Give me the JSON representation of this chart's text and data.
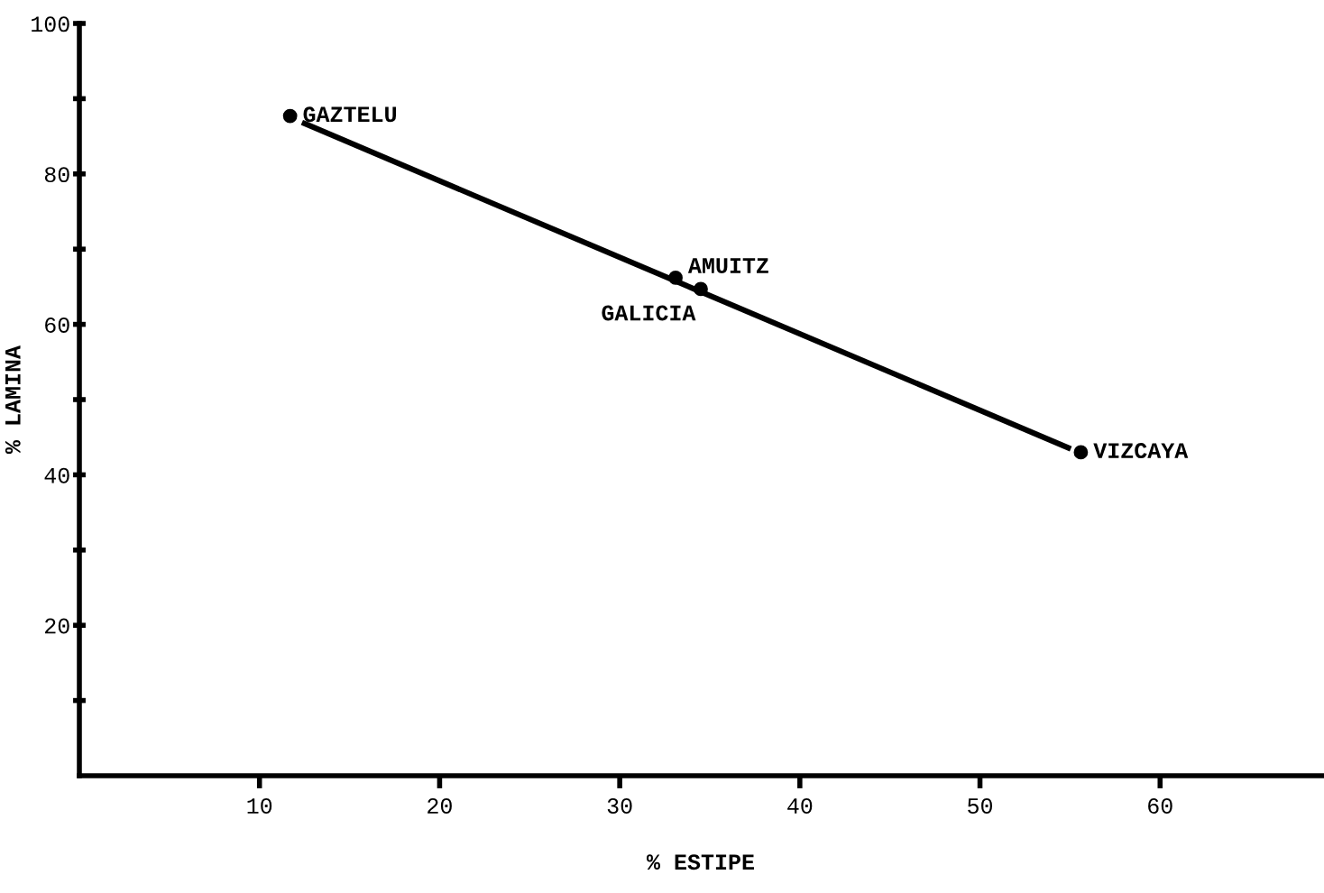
{
  "chart_data": {
    "type": "scatter",
    "xlabel": "% ESTIPE",
    "ylabel": "% LAMINA",
    "x": [
      11.7,
      33.1,
      34.5,
      55.6
    ],
    "values": [
      87.7,
      66.2,
      64.7,
      43.0
    ],
    "color": "#000000",
    "marker": "circle",
    "series": [
      {
        "type": "line",
        "x": [
          12.5,
          54.9
        ],
        "values": [
          86.7,
          43.6
        ],
        "color": "#000000",
        "marker": "none"
      }
    ],
    "annotations": [
      {
        "text": "GAZTELU",
        "x": 11.7,
        "y": 87.7
      },
      {
        "text": "AMUITZ",
        "x": 33.1,
        "y": 66.2
      },
      {
        "text": "GALICIA",
        "x": 34.5,
        "y": 64.7
      },
      {
        "text": "VIZCAYA",
        "x": 55.6,
        "y": 43.0
      }
    ],
    "xlim": [
      0,
      69
    ],
    "xticks": [
      10,
      20,
      30,
      40,
      50,
      60
    ],
    "ylim": [
      0,
      100
    ],
    "yticks": [
      {
        "value": 10,
        "label": null
      },
      20,
      {
        "value": 30,
        "label": null
      },
      40,
      {
        "value": 50,
        "label": null
      },
      60,
      {
        "value": 70,
        "label": null
      },
      80,
      {
        "value": 90,
        "label": null
      },
      100
    ],
    "grid": false,
    "legend": false
  }
}
